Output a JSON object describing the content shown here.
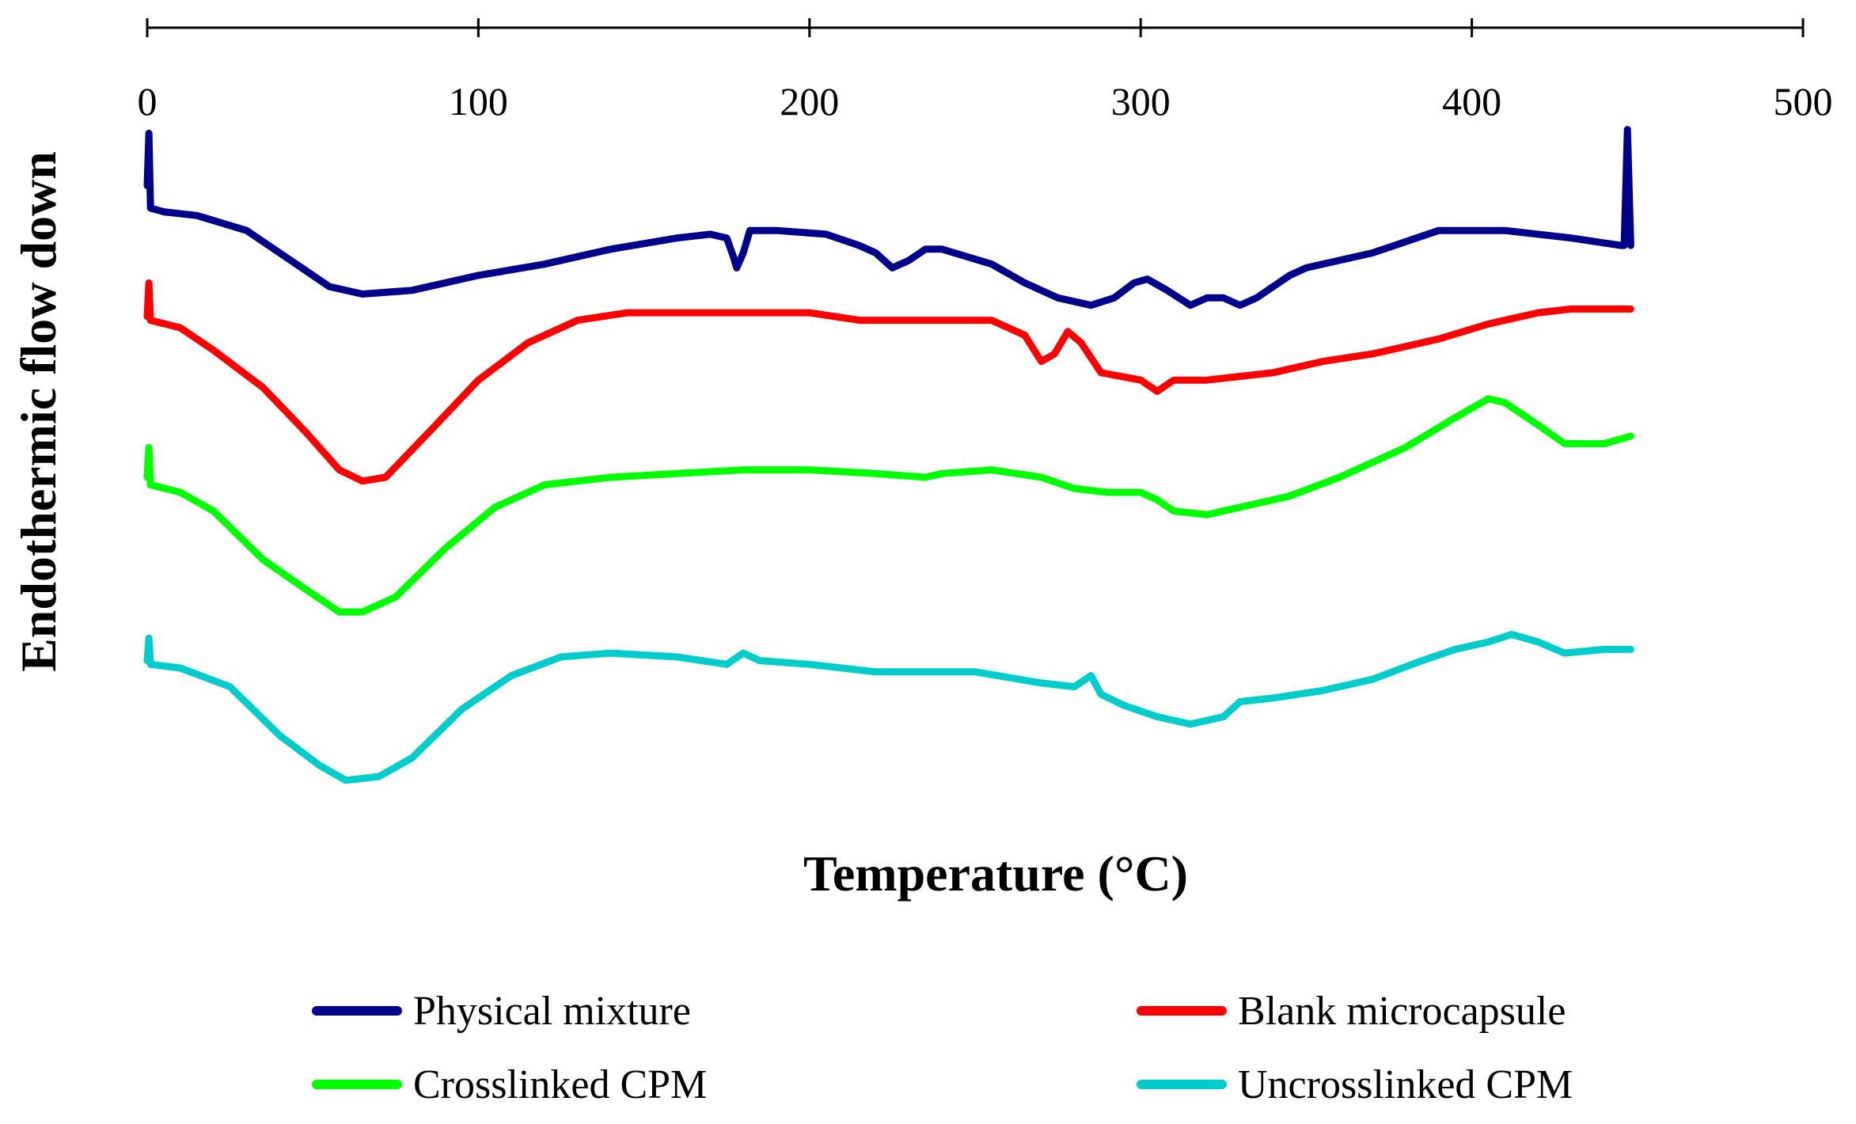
{
  "chart_data": {
    "type": "line",
    "title": "",
    "xlabel": "Temperature (°C)",
    "ylabel": "Endothermic flow down",
    "xlim": [
      0,
      500
    ],
    "ylim": [
      0,
      100
    ],
    "x_ticks": [
      0,
      100,
      200,
      300,
      400,
      500
    ],
    "x_tick_labels": [
      "0",
      "100",
      "200",
      "300",
      "400",
      "500"
    ],
    "x_axis_position": "top",
    "y_axis_shown": false,
    "grid": false,
    "legend_position": "bottom",
    "series": [
      {
        "name": "Physical mixture",
        "color": "#00008B",
        "points": [
          [
            0,
            90
          ],
          [
            0.5,
            97
          ],
          [
            1,
            87
          ],
          [
            5,
            86.5
          ],
          [
            15,
            86
          ],
          [
            30,
            84
          ],
          [
            45,
            79.5
          ],
          [
            55,
            76.5
          ],
          [
            65,
            75.5
          ],
          [
            80,
            76
          ],
          [
            100,
            78
          ],
          [
            120,
            79.5
          ],
          [
            140,
            81.5
          ],
          [
            160,
            83
          ],
          [
            170,
            83.5
          ],
          [
            175,
            83
          ],
          [
            177,
            80.5
          ],
          [
            178,
            79
          ],
          [
            180,
            81
          ],
          [
            182,
            84
          ],
          [
            190,
            84
          ],
          [
            205,
            83.5
          ],
          [
            215,
            82
          ],
          [
            220,
            81
          ],
          [
            225,
            79
          ],
          [
            230,
            80
          ],
          [
            235,
            81.5
          ],
          [
            240,
            81.5
          ],
          [
            255,
            79.5
          ],
          [
            265,
            77
          ],
          [
            275,
            75
          ],
          [
            285,
            74
          ],
          [
            292,
            75
          ],
          [
            298,
            77
          ],
          [
            302,
            77.5
          ],
          [
            308,
            76
          ],
          [
            315,
            74
          ],
          [
            320,
            75
          ],
          [
            325,
            75
          ],
          [
            330,
            74
          ],
          [
            335,
            75
          ],
          [
            340,
            76.5
          ],
          [
            345,
            78
          ],
          [
            350,
            79
          ],
          [
            370,
            81
          ],
          [
            390,
            84
          ],
          [
            410,
            84
          ],
          [
            430,
            83
          ],
          [
            445,
            82
          ],
          [
            446,
            82
          ],
          [
            447,
            97.5
          ],
          [
            448,
            82
          ]
        ]
      },
      {
        "name": "Blank microcapsule",
        "color": "#FF0000",
        "points": [
          [
            0,
            72.5
          ],
          [
            0.5,
            77
          ],
          [
            1,
            72
          ],
          [
            10,
            71
          ],
          [
            20,
            68
          ],
          [
            35,
            63
          ],
          [
            48,
            57
          ],
          [
            58,
            52
          ],
          [
            65,
            50.5
          ],
          [
            72,
            51
          ],
          [
            85,
            57
          ],
          [
            100,
            64
          ],
          [
            115,
            69
          ],
          [
            130,
            72
          ],
          [
            145,
            73
          ],
          [
            160,
            73
          ],
          [
            180,
            73
          ],
          [
            200,
            73
          ],
          [
            215,
            72
          ],
          [
            235,
            72
          ],
          [
            255,
            72
          ],
          [
            265,
            70
          ],
          [
            270,
            66.5
          ],
          [
            274,
            67.5
          ],
          [
            278,
            70.5
          ],
          [
            282,
            69
          ],
          [
            288,
            65
          ],
          [
            300,
            64
          ],
          [
            305,
            62.5
          ],
          [
            310,
            64
          ],
          [
            320,
            64
          ],
          [
            330,
            64.5
          ],
          [
            340,
            65
          ],
          [
            355,
            66.5
          ],
          [
            370,
            67.5
          ],
          [
            390,
            69.5
          ],
          [
            405,
            71.5
          ],
          [
            420,
            73
          ],
          [
            430,
            73.5
          ],
          [
            440,
            73.5
          ],
          [
            448,
            73.5
          ]
        ]
      },
      {
        "name": "Crosslinked CPM",
        "color": "#00FF00",
        "points": [
          [
            0,
            51
          ],
          [
            0.5,
            55
          ],
          [
            1,
            50
          ],
          [
            10,
            49
          ],
          [
            20,
            46.5
          ],
          [
            35,
            40
          ],
          [
            48,
            36
          ],
          [
            58,
            33
          ],
          [
            65,
            33
          ],
          [
            75,
            35
          ],
          [
            90,
            41.5
          ],
          [
            105,
            47
          ],
          [
            120,
            50
          ],
          [
            140,
            51
          ],
          [
            160,
            51.5
          ],
          [
            180,
            52
          ],
          [
            200,
            52
          ],
          [
            220,
            51.5
          ],
          [
            235,
            51
          ],
          [
            240,
            51.5
          ],
          [
            255,
            52
          ],
          [
            270,
            51
          ],
          [
            280,
            49.5
          ],
          [
            290,
            49
          ],
          [
            300,
            49
          ],
          [
            305,
            48
          ],
          [
            310,
            46.5
          ],
          [
            320,
            46
          ],
          [
            330,
            47
          ],
          [
            345,
            48.5
          ],
          [
            360,
            51
          ],
          [
            380,
            55
          ],
          [
            395,
            59
          ],
          [
            405,
            61.5
          ],
          [
            410,
            61
          ],
          [
            420,
            58
          ],
          [
            428,
            55.5
          ],
          [
            440,
            55.5
          ],
          [
            448,
            56.5
          ]
        ]
      },
      {
        "name": "Uncrosslinked CPM",
        "color": "#00CCCC",
        "points": [
          [
            0,
            26.5
          ],
          [
            0.5,
            29.5
          ],
          [
            1,
            26
          ],
          [
            10,
            25.5
          ],
          [
            25,
            23
          ],
          [
            40,
            16.5
          ],
          [
            52,
            12.5
          ],
          [
            60,
            10.5
          ],
          [
            70,
            11
          ],
          [
            80,
            13.5
          ],
          [
            95,
            20
          ],
          [
            110,
            24.5
          ],
          [
            125,
            27
          ],
          [
            140,
            27.5
          ],
          [
            160,
            27
          ],
          [
            175,
            26
          ],
          [
            180,
            27.5
          ],
          [
            185,
            26.5
          ],
          [
            200,
            26
          ],
          [
            220,
            25
          ],
          [
            250,
            25
          ],
          [
            270,
            23.5
          ],
          [
            280,
            23
          ],
          [
            285,
            24.5
          ],
          [
            288,
            22
          ],
          [
            295,
            20.5
          ],
          [
            305,
            19
          ],
          [
            315,
            18
          ],
          [
            325,
            19
          ],
          [
            330,
            21
          ],
          [
            340,
            21.5
          ],
          [
            355,
            22.5
          ],
          [
            370,
            24
          ],
          [
            385,
            26.5
          ],
          [
            395,
            28
          ],
          [
            405,
            29
          ],
          [
            412,
            30
          ],
          [
            420,
            29
          ],
          [
            428,
            27.5
          ],
          [
            440,
            28
          ],
          [
            448,
            28
          ]
        ]
      }
    ]
  }
}
